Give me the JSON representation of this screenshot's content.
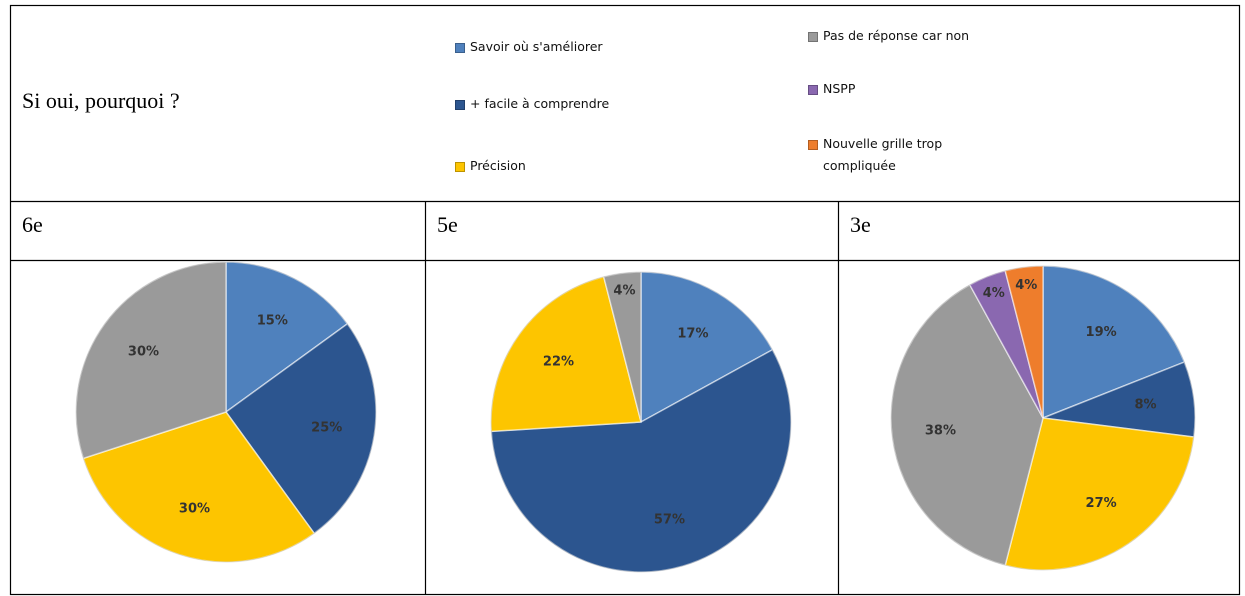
{
  "question": "Si oui, pourquoi ?",
  "legend": [
    {
      "name": "Savoir où s'améliorer",
      "color": "#4f81bd"
    },
    {
      "name": "+ facile à comprendre",
      "color": "#2c558f"
    },
    {
      "name": "Précision",
      "color": "#fdc500"
    },
    {
      "name": "Pas de réponse car non",
      "color": "#9a9a9a"
    },
    {
      "name": "NSPP",
      "color": "#8a68b0"
    },
    {
      "name": "Nouvelle grille trop compliquée",
      "color": "#ee7d2c"
    }
  ],
  "chart_data": [
    {
      "type": "pie",
      "title": "6e",
      "values": [
        15,
        25,
        30,
        30
      ],
      "value_labels": [
        "15%",
        "25%",
        "30%",
        "30%"
      ]
    },
    {
      "type": "pie",
      "title": "5e",
      "values": [
        17,
        57,
        22,
        4
      ],
      "value_labels": [
        "17%",
        "57%",
        "22%",
        "4%"
      ]
    },
    {
      "type": "pie",
      "title": "3e",
      "values": [
        19,
        8,
        27,
        38,
        4,
        4
      ],
      "value_labels": [
        "19%",
        "8%",
        "27%",
        "38%",
        "4%",
        "4%"
      ]
    }
  ]
}
